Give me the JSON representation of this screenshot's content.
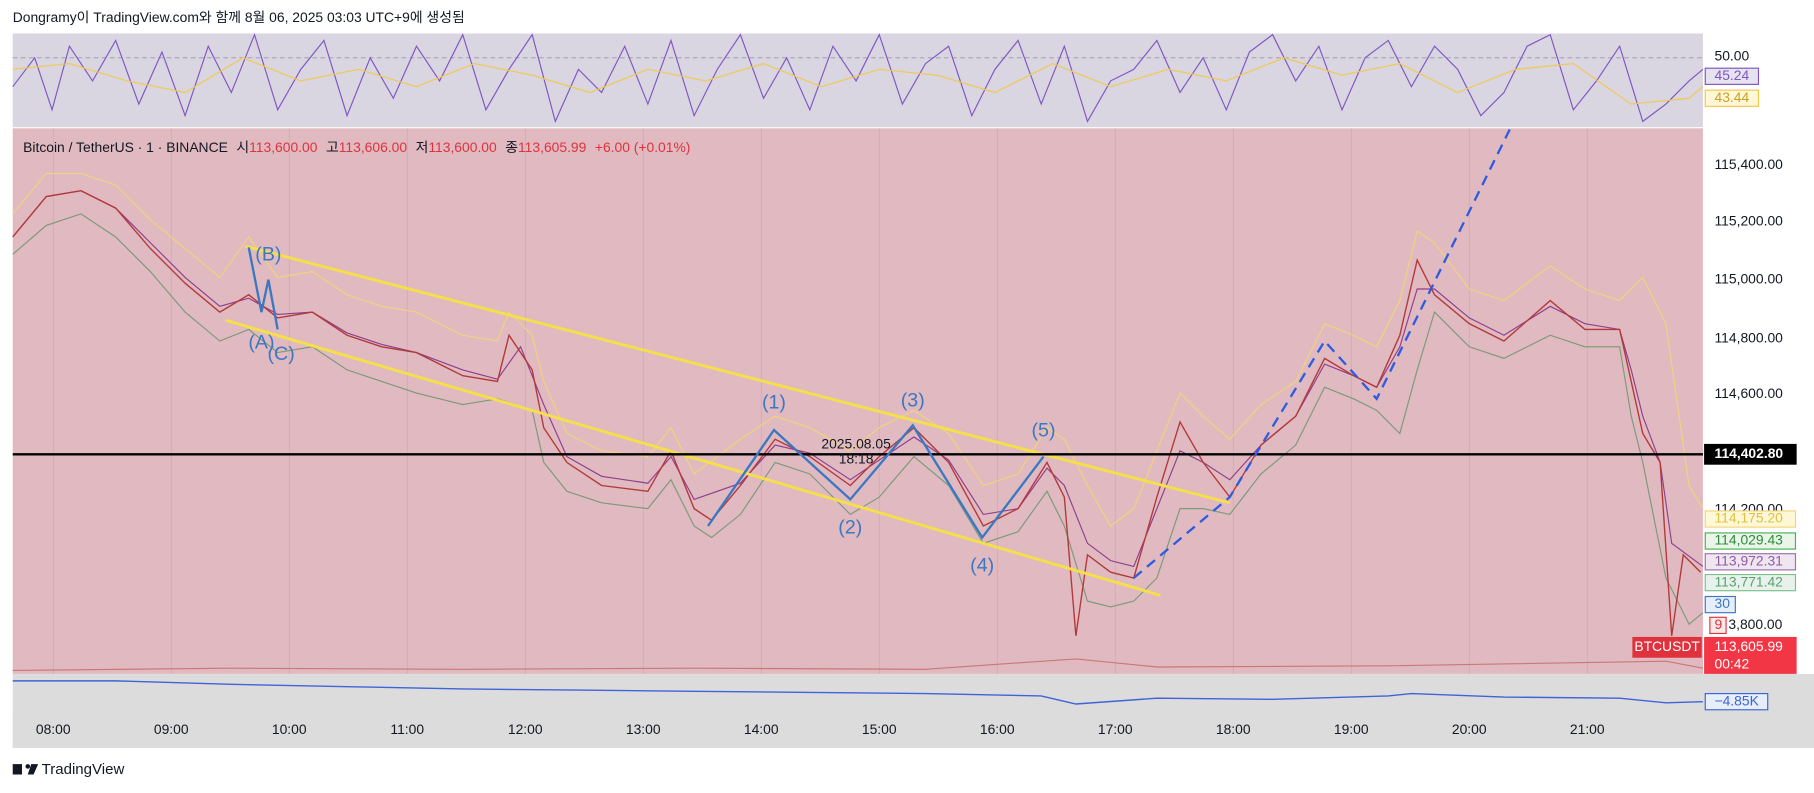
{
  "header": {
    "caption": "Dongramy이 TradingView.com와 함께 8월 06, 2025 03:03 UTC+9에 생성됨"
  },
  "legend": {
    "symbol": "Bitcoin / TetherUS · 1 · BINANCE",
    "open_label": "시",
    "open": "113,600.00",
    "high_label": "고",
    "high": "113,606.00",
    "low_label": "저",
    "low": "113,600.00",
    "close_label": "종",
    "close": "113,605.99",
    "change": "+6.00 (+0.01%)"
  },
  "rsi_axis": [
    "50.00",
    "45.24",
    "43.44"
  ],
  "price_axis": [
    "115,400.00",
    "115,200.00",
    "115,000.00",
    "114,800.00",
    "114,600.00",
    "114,200.00",
    "3,800.00"
  ],
  "horizontal_line_price": "114,402.80",
  "indicator_labels": [
    "114,175.20",
    "114,029.43",
    "113,972.31",
    "113,771.42",
    "30",
    "9"
  ],
  "last_price": {
    "symbol": "BTCUSDT",
    "price": "113,605.99",
    "countdown": "00:42"
  },
  "cvd_label": "−4.85K",
  "time_axis": [
    "08:00",
    "09:00",
    "10:00",
    "11:00",
    "12:00",
    "13:00",
    "14:00",
    "15:00",
    "16:00",
    "17:00",
    "18:00",
    "19:00",
    "20:00",
    "21:00"
  ],
  "waves": [
    "(A)",
    "(B)",
    "(C)",
    "(1)",
    "(2)",
    "(3)",
    "(4)",
    "(5)"
  ],
  "note": [
    "2025.08.05",
    "18:18"
  ],
  "footer": {
    "brand": "TradingView"
  }
}
